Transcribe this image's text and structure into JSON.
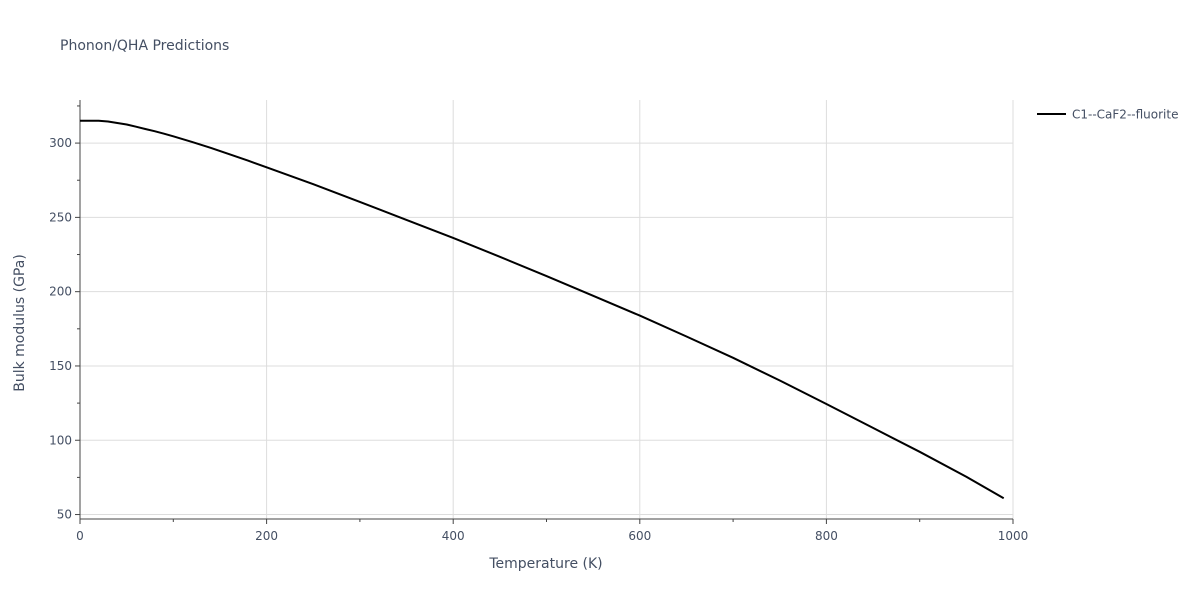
{
  "chart_data": {
    "type": "line",
    "title": "Phonon/QHA Predictions",
    "xlabel": "Temperature (K)",
    "ylabel": "Bulk modulus (GPa)",
    "xlim": [
      0,
      1000
    ],
    "ylim": [
      47,
      329
    ],
    "x_ticks": [
      0,
      200,
      400,
      600,
      800,
      1000
    ],
    "y_ticks": [
      50,
      100,
      150,
      200,
      250,
      300
    ],
    "x_tick_labels": [
      "0",
      "200",
      "400",
      "600",
      "800",
      "1000"
    ],
    "y_tick_labels": [
      "50",
      "100",
      "150",
      "200",
      "250",
      "300"
    ],
    "grid": true,
    "legend_position": "top-right",
    "series": [
      {
        "name": "C1--CaF2--fluorite",
        "color": "#000000",
        "x": [
          0,
          10,
          20,
          30,
          40,
          50,
          60,
          70,
          80,
          90,
          100,
          120,
          140,
          160,
          180,
          200,
          250,
          300,
          350,
          400,
          450,
          500,
          550,
          600,
          650,
          700,
          750,
          800,
          850,
          900,
          950,
          990
        ],
        "y": [
          315,
          315,
          315,
          314.5,
          313.5,
          312.5,
          311,
          309.5,
          308,
          306.3,
          304.6,
          300.8,
          296.8,
          292.5,
          288.2,
          283.7,
          272.3,
          260.4,
          248.3,
          236.2,
          223.5,
          210.5,
          197.2,
          183.9,
          169.8,
          155.5,
          140.2,
          124.4,
          108.3,
          92.2,
          75.5,
          61
        ]
      }
    ]
  }
}
